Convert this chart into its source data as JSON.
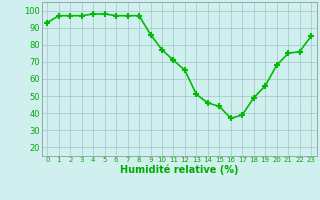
{
  "x": [
    0,
    1,
    2,
    3,
    4,
    5,
    6,
    7,
    8,
    9,
    10,
    11,
    12,
    13,
    14,
    15,
    16,
    17,
    18,
    19,
    20,
    21,
    22,
    23
  ],
  "y": [
    93,
    97,
    97,
    97,
    98,
    98,
    97,
    97,
    97,
    86,
    77,
    71,
    65,
    51,
    46,
    44,
    37,
    39,
    49,
    56,
    68,
    75,
    76,
    85
  ],
  "line_color": "#00bb00",
  "marker": "+",
  "bg_color": "#d0f0f0",
  "grid_color": "#aacccc",
  "xlabel": "Humidité relative (%)",
  "xlabel_color": "#00aa00",
  "ylabel_ticks": [
    20,
    30,
    40,
    50,
    60,
    70,
    80,
    90,
    100
  ],
  "ylim": [
    15,
    105
  ],
  "xlim": [
    -0.5,
    23.5
  ],
  "tick_color": "#00aa00",
  "axis_color": "#888888",
  "xtick_fontsize": 5.0,
  "ytick_fontsize": 6.0,
  "xlabel_fontsize": 7.0,
  "linewidth": 1.2,
  "markersize": 4.5
}
